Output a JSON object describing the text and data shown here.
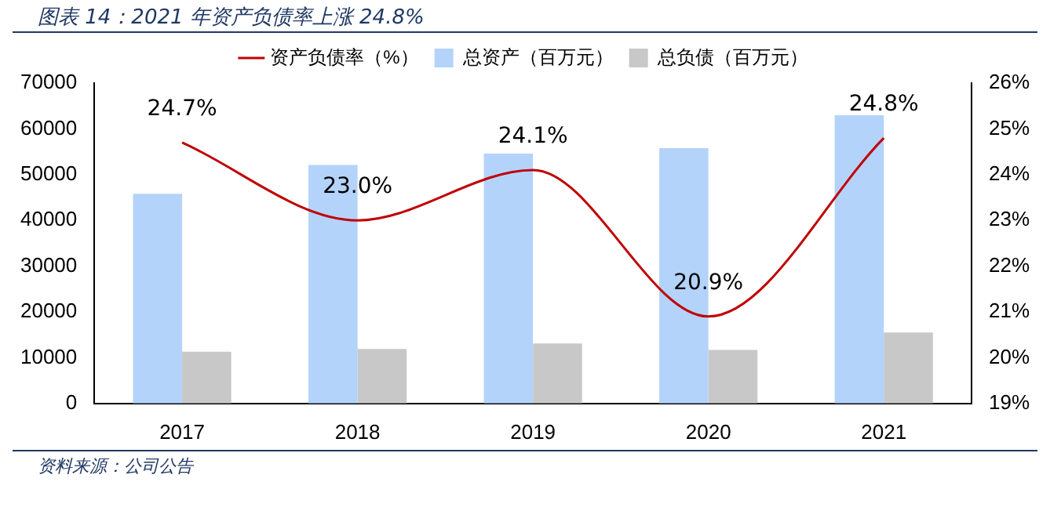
{
  "chart_data": {
    "type": "bar",
    "title": "图表 14：2021 年资产负债率上涨 24.8%",
    "categories": [
      "2017",
      "2018",
      "2019",
      "2020",
      "2021"
    ],
    "series": [
      {
        "name": "总资产（百万元）",
        "color": "#b4d3fb",
        "values": [
          45800,
          52100,
          54600,
          55800,
          63000
        ]
      },
      {
        "name": "总负债（百万元）",
        "color": "#c8c8c8",
        "values": [
          11300,
          11900,
          13100,
          11700,
          15500
        ]
      },
      {
        "name": "资产负债率（%）",
        "type": "line",
        "axis": "y2",
        "color": "#c00000",
        "values": [
          24.7,
          23.0,
          24.1,
          20.9,
          24.8
        ],
        "value_labels": [
          "24.7%",
          "23.0%",
          "24.1%",
          "20.9%",
          "24.8%"
        ]
      }
    ],
    "ylim": [
      0,
      70000
    ],
    "yticks": [
      0,
      10000,
      20000,
      30000,
      40000,
      50000,
      60000,
      70000
    ],
    "y2lim": [
      19,
      26
    ],
    "y2ticks": [
      {
        "value": 19,
        "label": "19%"
      },
      {
        "value": 20,
        "label": "20%"
      },
      {
        "value": 21,
        "label": "21%"
      },
      {
        "value": 22,
        "label": "22%"
      },
      {
        "value": 23,
        "label": "23%"
      },
      {
        "value": 24,
        "label": "24%"
      },
      {
        "value": 25,
        "label": "25%"
      },
      {
        "value": 26,
        "label": "26%"
      }
    ],
    "grid": false,
    "legend": "top",
    "marker": "none",
    "annotations": [
      "资料来源：公司公告"
    ]
  }
}
